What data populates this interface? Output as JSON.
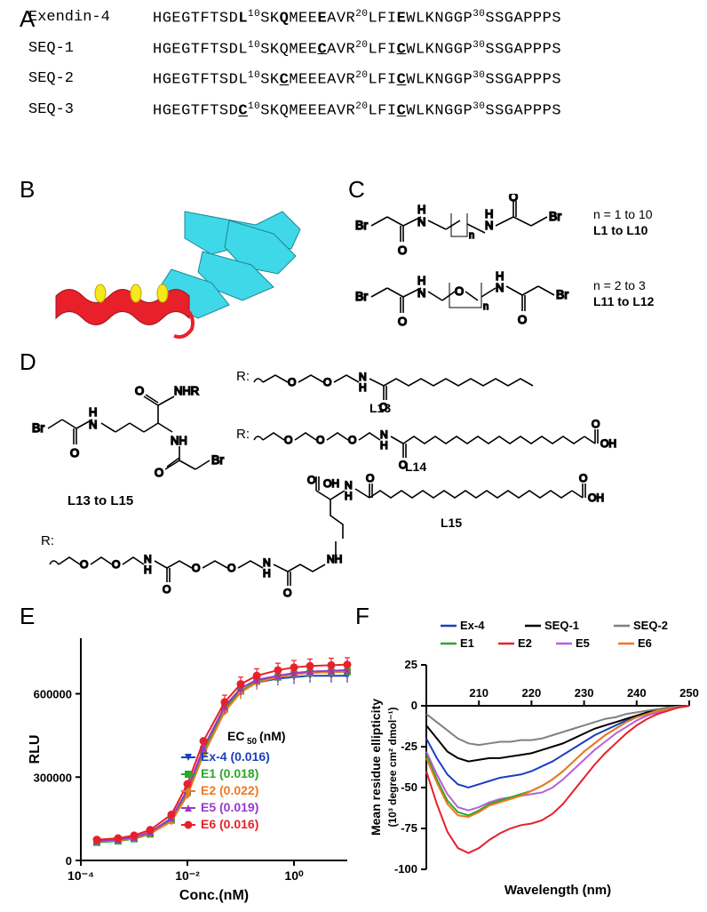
{
  "panelA": {
    "label": "A",
    "rows": [
      {
        "name": "Exendin-4",
        "seq": "HGEGTFTSD{b:L}{s:10}SK{b:Q}MEE{b:E}AVR{s:20}LFI{b:E}WLKNGGP{s:30}SSGAPPPS"
      },
      {
        "name": "SEQ-1",
        "seq": "HGEGTFTSDL{s:10}SKQMEE{m:C}AVR{s:20}LFI{m:C}WLKNGGP{s:30}SSGAPPPS"
      },
      {
        "name": "SEQ-2",
        "seq": "HGEGTFTSDL{s:10}SK{m:C}MEEEAVR{s:20}LFI{m:C}WLKNGGP{s:30}SSGAPPPS"
      },
      {
        "name": "SEQ-3",
        "seq": "HGEGTFTSD{m:C}{s:10}SKQMEEEAVR{s:20}LFI{m:C}WLKNGGP{s:30}SSGAPPPS"
      }
    ]
  },
  "panelB": {
    "label": "B",
    "colors": {
      "receptor": "#3fd8e8",
      "ligand": "#e8202a",
      "highlight": "#f6e81a"
    }
  },
  "panelC": {
    "label": "C",
    "rows": [
      {
        "range_text": "n = 1 to 10",
        "linker_text": "L1 to L10"
      },
      {
        "range_text": "n = 2 to 3",
        "linker_text": "L11 to L12"
      }
    ]
  },
  "panelD": {
    "label": "D",
    "core_label": "L13 to L15",
    "r_label": "R:",
    "linkers": [
      "L13",
      "L14",
      "L15"
    ]
  },
  "panelE": {
    "label": "E",
    "ylabel": "RLU",
    "xlabel": "Conc.(nM)",
    "ec50_header": "EC₅₀(nM)",
    "xlim": [
      0.0001,
      10
    ],
    "ylim": [
      0,
      800000
    ],
    "xticks": [
      0.0001,
      0.01,
      1
    ],
    "xtick_labels": [
      "10⁻⁴",
      "10⁻²",
      "10⁰"
    ],
    "yticks": [
      0,
      300000,
      600000
    ],
    "colors": {
      "Ex-4": "#1a3fbf",
      "E1": "#2aa82a",
      "E2": "#f07820",
      "E5": "#9838c8",
      "E6": "#e8202a"
    },
    "markers": {
      "Ex-4": "tri-down",
      "E1": "square",
      "E2": "diamond",
      "E5": "tri-up",
      "E6": "circle"
    },
    "legend": [
      {
        "name": "Ex-4",
        "ec50": "0.016"
      },
      {
        "name": "E1",
        "ec50": "0.018"
      },
      {
        "name": "E2",
        "ec50": "0.022"
      },
      {
        "name": "E5",
        "ec50": "0.019"
      },
      {
        "name": "E6",
        "ec50": "0.016"
      }
    ],
    "data_x": [
      0.0002,
      0.0005,
      0.001,
      0.002,
      0.005,
      0.01,
      0.02,
      0.05,
      0.1,
      0.2,
      0.5,
      1,
      2,
      5,
      10
    ],
    "series": {
      "Ex-4": [
        70000,
        75000,
        82000,
        100000,
        150000,
        250000,
        400000,
        550000,
        610000,
        640000,
        655000,
        660000,
        665000,
        665000,
        665000
      ],
      "E1": [
        65000,
        70000,
        78000,
        95000,
        145000,
        245000,
        395000,
        545000,
        610000,
        645000,
        660000,
        670000,
        675000,
        678000,
        680000
      ],
      "E2": [
        68000,
        72000,
        80000,
        97000,
        140000,
        235000,
        380000,
        535000,
        605000,
        640000,
        660000,
        670000,
        675000,
        678000,
        680000
      ],
      "E5": [
        70000,
        75000,
        83000,
        102000,
        152000,
        255000,
        405000,
        555000,
        620000,
        650000,
        665000,
        675000,
        680000,
        683000,
        685000
      ],
      "E6": [
        75000,
        80000,
        90000,
        110000,
        165000,
        275000,
        430000,
        570000,
        635000,
        665000,
        685000,
        695000,
        700000,
        703000,
        705000
      ]
    }
  },
  "panelF": {
    "label": "F",
    "ylabel": "Mean residue ellipticity",
    "ylabel2": "(10³ degree cm² dmol⁻¹)",
    "xlabel": "Wavelength (nm)",
    "xlim": [
      200,
      250
    ],
    "ylim": [
      -100,
      25
    ],
    "xticks": [
      210,
      220,
      230,
      240,
      250
    ],
    "yticks": [
      -100,
      -75,
      -50,
      -25,
      0,
      25
    ],
    "colors": {
      "Ex-4": "#1a3fbf",
      "SEQ-1": "#000000",
      "SEQ-2": "#808080",
      "E1": "#2aa82a",
      "E2": "#e8202a",
      "E5": "#b860d8",
      "E6": "#f07820"
    },
    "legend_order": [
      "Ex-4",
      "SEQ-1",
      "SEQ-2",
      "E1",
      "E2",
      "E5",
      "E6"
    ],
    "data_x": [
      200,
      202,
      204,
      206,
      208,
      210,
      212,
      214,
      216,
      218,
      220,
      222,
      224,
      226,
      228,
      230,
      232,
      234,
      236,
      238,
      240,
      242,
      244,
      246,
      248,
      250
    ],
    "series": {
      "SEQ-2": [
        -5,
        -10,
        -15,
        -20,
        -23,
        -24,
        -23,
        -22,
        -22,
        -21,
        -21,
        -20,
        -18,
        -16,
        -14,
        -12,
        -10,
        -8,
        -7,
        -5,
        -4,
        -3,
        -2,
        -1,
        -0.5,
        0
      ],
      "SEQ-1": [
        -12,
        -20,
        -28,
        -32,
        -34,
        -33,
        -32,
        -32,
        -31,
        -30,
        -29,
        -27,
        -25,
        -23,
        -20,
        -17,
        -14,
        -12,
        -10,
        -8,
        -6,
        -4,
        -3,
        -2,
        -1,
        0
      ],
      "Ex-4": [
        -20,
        -32,
        -42,
        -48,
        -50,
        -48,
        -46,
        -44,
        -43,
        -42,
        -40,
        -37,
        -34,
        -30,
        -26,
        -22,
        -18,
        -15,
        -12,
        -9,
        -7,
        -5,
        -3,
        -2,
        -1,
        0
      ],
      "E5": [
        -28,
        -42,
        -54,
        -62,
        -64,
        -62,
        -59,
        -57,
        -56,
        -55,
        -54,
        -53,
        -50,
        -45,
        -39,
        -33,
        -27,
        -22,
        -17,
        -13,
        -9,
        -6,
        -4,
        -2,
        -1,
        0
      ],
      "E1": [
        -30,
        -45,
        -58,
        -65,
        -67,
        -64,
        -60,
        -58,
        -56,
        -54,
        -52,
        -49,
        -45,
        -40,
        -34,
        -28,
        -23,
        -18,
        -14,
        -10,
        -7,
        -5,
        -3,
        -2,
        -1,
        0
      ],
      "E6": [
        -32,
        -47,
        -60,
        -67,
        -68,
        -65,
        -61,
        -59,
        -57,
        -55,
        -52,
        -49,
        -45,
        -40,
        -34,
        -28,
        -23,
        -18,
        -14,
        -10,
        -7,
        -5,
        -3,
        -2,
        -1,
        0
      ],
      "E2": [
        -40,
        -60,
        -77,
        -87,
        -90,
        -87,
        -82,
        -78,
        -75,
        -73,
        -72,
        -70,
        -66,
        -60,
        -52,
        -44,
        -36,
        -29,
        -23,
        -17,
        -12,
        -8,
        -5,
        -3,
        -1,
        0
      ]
    }
  }
}
